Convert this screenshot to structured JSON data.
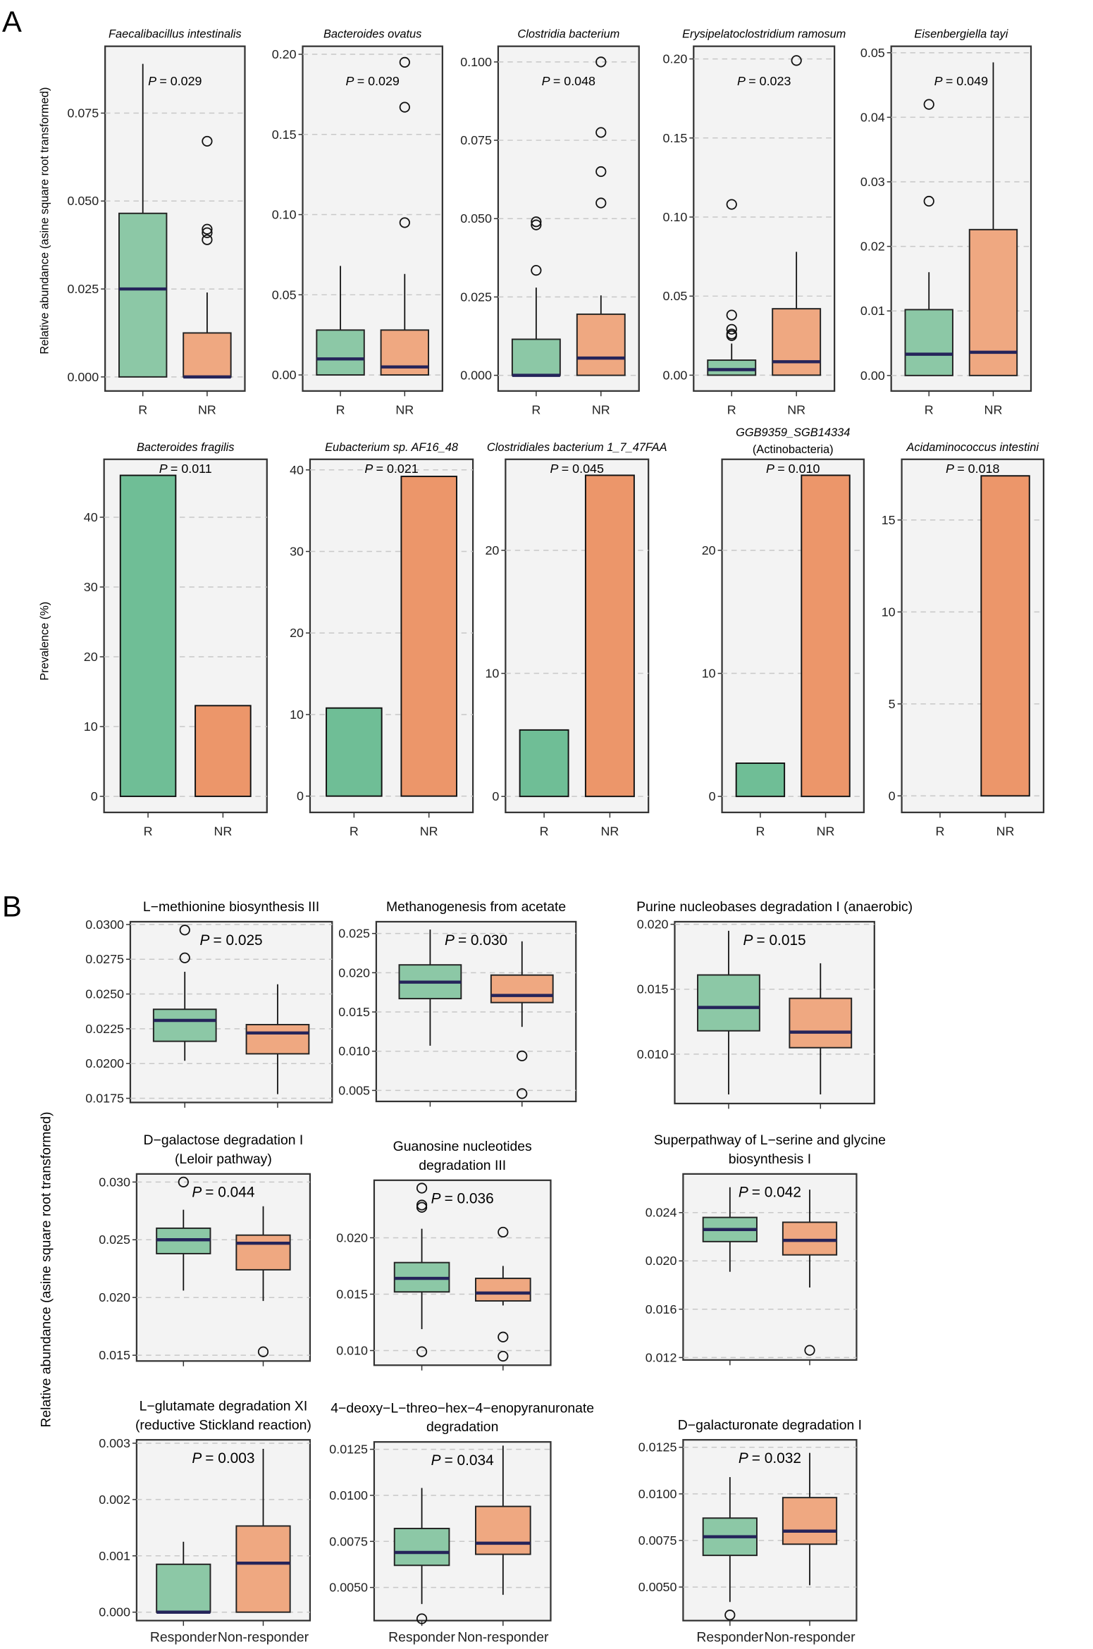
{
  "panel_labels": {
    "a": "A",
    "b": "B"
  },
  "y_labels": {
    "a_box": "Relative abundance (asine square root transformed)",
    "a_bar": "Prevalence (%)",
    "b": "Relative abundance (asine square root transformed)"
  },
  "colors": {
    "responder": "#8cc8a6",
    "non_responder": "#efa881",
    "bar_responder": "#6fbe96",
    "bar_non_responder": "#ec966a",
    "median": "#25245a",
    "panel_bg": "#f3f3f3"
  },
  "chart_data": [
    {
      "type": "box",
      "section": "A",
      "row": 1,
      "title": "Faecalibacillus intestinalis",
      "p": "P = 0.029",
      "categories": [
        "R",
        "NR"
      ],
      "ylim": [
        -0.004,
        0.094
      ],
      "yticks": [
        0,
        0.025,
        0.05,
        0.075
      ],
      "ytick_labels": [
        "0.000",
        "0.025",
        "0.050",
        "0.075"
      ],
      "boxes": [
        {
          "q1": 0,
          "median": 0.025,
          "q3": 0.0465,
          "lo": 0,
          "hi": 0.089,
          "outliers": []
        },
        {
          "q1": 0,
          "median": 0,
          "q3": 0.0125,
          "lo": 0,
          "hi": 0.024,
          "outliers": [
            0.067,
            0.042,
            0.041,
            0.039
          ]
        }
      ]
    },
    {
      "type": "box",
      "section": "A",
      "row": 1,
      "title": "Bacteroides ovatus",
      "p": "P = 0.029",
      "categories": [
        "R",
        "NR"
      ],
      "ylim": [
        -0.01,
        0.205
      ],
      "yticks": [
        0,
        0.05,
        0.1,
        0.15,
        0.2
      ],
      "ytick_labels": [
        "0.00",
        "0.05",
        "0.10",
        "0.15",
        "0.20"
      ],
      "boxes": [
        {
          "q1": 0,
          "median": 0.01,
          "q3": 0.028,
          "lo": 0,
          "hi": 0.068,
          "outliers": []
        },
        {
          "q1": 0,
          "median": 0.005,
          "q3": 0.028,
          "lo": 0,
          "hi": 0.063,
          "outliers": [
            0.195,
            0.167,
            0.095
          ]
        }
      ]
    },
    {
      "type": "box",
      "section": "A",
      "row": 1,
      "title": "Clostridia bacterium",
      "p": "P = 0.048",
      "categories": [
        "R",
        "NR"
      ],
      "ylim": [
        -0.005,
        0.105
      ],
      "yticks": [
        0,
        0.025,
        0.05,
        0.075,
        0.1
      ],
      "ytick_labels": [
        "0.000",
        "0.025",
        "0.050",
        "0.075",
        "0.100"
      ],
      "boxes": [
        {
          "q1": 0,
          "median": 0,
          "q3": 0.0115,
          "lo": 0,
          "hi": 0.028,
          "outliers": [
            0.049,
            0.048,
            0.0335
          ]
        },
        {
          "q1": 0,
          "median": 0.0055,
          "q3": 0.0195,
          "lo": 0,
          "hi": 0.0255,
          "outliers": [
            0.1,
            0.0775,
            0.065,
            0.055
          ]
        }
      ]
    },
    {
      "type": "box",
      "section": "A",
      "row": 1,
      "title": "Erysipelatoclostridium ramosum",
      "p": "P = 0.023",
      "categories": [
        "R",
        "NR"
      ],
      "ylim": [
        -0.01,
        0.208
      ],
      "yticks": [
        0,
        0.05,
        0.1,
        0.15,
        0.2
      ],
      "ytick_labels": [
        "0.00",
        "0.05",
        "0.10",
        "0.15",
        "0.20"
      ],
      "boxes": [
        {
          "q1": 0,
          "median": 0.0035,
          "q3": 0.0095,
          "lo": 0,
          "hi": 0.02,
          "outliers": [
            0.108,
            0.038,
            0.029,
            0.026,
            0.025
          ]
        },
        {
          "q1": 0,
          "median": 0.0085,
          "q3": 0.042,
          "lo": 0,
          "hi": 0.078,
          "outliers": [
            0.199
          ]
        }
      ]
    },
    {
      "type": "box",
      "section": "A",
      "row": 1,
      "title": "Eisenbergiella tayi",
      "p": "P = 0.049",
      "categories": [
        "R",
        "NR"
      ],
      "ylim": [
        -0.0024,
        0.051
      ],
      "yticks": [
        0,
        0.01,
        0.02,
        0.03,
        0.04,
        0.05
      ],
      "ytick_labels": [
        "0.00",
        "0.01",
        "0.02",
        "0.03",
        "0.04",
        "0.05"
      ],
      "boxes": [
        {
          "q1": 0,
          "median": 0.0033,
          "q3": 0.0102,
          "lo": 0,
          "hi": 0.016,
          "outliers": [
            0.042,
            0.027
          ]
        },
        {
          "q1": 0,
          "median": 0.0036,
          "q3": 0.0226,
          "lo": 0,
          "hi": 0.0485,
          "outliers": []
        }
      ]
    },
    {
      "type": "bar",
      "section": "A",
      "row": 2,
      "title": "Bacteroides fragilis",
      "p": "P = 0.011",
      "categories": [
        "R",
        "NR"
      ],
      "values": [
        46,
        13
      ],
      "ylim": [
        -2.3,
        48.3
      ],
      "yticks": [
        0,
        10,
        20,
        30,
        40
      ],
      "ytick_labels": [
        "0",
        "10",
        "20",
        "30",
        "40"
      ]
    },
    {
      "type": "bar",
      "section": "A",
      "row": 2,
      "title": "Eubacterium sp. AF16_48",
      "p": "P = 0.021",
      "categories": [
        "R",
        "NR"
      ],
      "values": [
        10.8,
        39.2
      ],
      "ylim": [
        -2.0,
        41.3
      ],
      "yticks": [
        0,
        10,
        20,
        30,
        40
      ],
      "ytick_labels": [
        "0",
        "10",
        "20",
        "30",
        "40"
      ]
    },
    {
      "type": "bar",
      "section": "A",
      "row": 2,
      "title": "Clostridiales bacterium 1_7_47FAA",
      "p": "P = 0.045",
      "categories": [
        "R",
        "NR"
      ],
      "values": [
        5.4,
        26.1
      ],
      "ylim": [
        -1.3,
        27.4
      ],
      "yticks": [
        0,
        10,
        20
      ],
      "ytick_labels": [
        "0",
        "10",
        "20"
      ]
    },
    {
      "type": "bar",
      "section": "A",
      "row": 2,
      "title": "GGB9359_SGB14334",
      "subtitle": "(Actinobacteria)",
      "p": "P = 0.010",
      "categories": [
        "R",
        "NR"
      ],
      "values": [
        2.7,
        26.1
      ],
      "ylim": [
        -1.3,
        27.4
      ],
      "yticks": [
        0,
        10,
        20
      ],
      "ytick_labels": [
        "0",
        "10",
        "20"
      ]
    },
    {
      "type": "bar",
      "section": "A",
      "row": 2,
      "title": "Acidaminococcus intestini",
      "p": "P = 0.018",
      "categories": [
        "R",
        "NR"
      ],
      "values": [
        0,
        17.4
      ],
      "ylim": [
        -0.9,
        18.3
      ],
      "yticks": [
        0,
        5,
        10,
        15
      ],
      "ytick_labels": [
        "0",
        "5",
        "10",
        "15"
      ]
    },
    {
      "type": "box",
      "section": "B",
      "row": 1,
      "title": "L−methionine biosynthesis III",
      "p": "P = 0.025",
      "categories": [
        "Responder",
        "Non-responder"
      ],
      "ylim": [
        0.0172,
        0.0302
      ],
      "yticks": [
        0.0175,
        0.02,
        0.0225,
        0.025,
        0.0275,
        0.03
      ],
      "ytick_labels": [
        "0.0175",
        "0.0200",
        "0.0225",
        "0.0250",
        "0.0275",
        "0.0300"
      ],
      "boxes": [
        {
          "q1": 0.0216,
          "median": 0.0231,
          "q3": 0.0239,
          "lo": 0.0202,
          "hi": 0.0266,
          "outliers": [
            0.0296,
            0.0276
          ]
        },
        {
          "q1": 0.0207,
          "median": 0.0222,
          "q3": 0.0228,
          "lo": 0.0178,
          "hi": 0.0257,
          "outliers": []
        }
      ]
    },
    {
      "type": "box",
      "section": "B",
      "row": 1,
      "title": "Methanogenesis from acetate",
      "p": "P = 0.030",
      "categories": [
        "Responder",
        "Non-responder"
      ],
      "ylim": [
        0.0036,
        0.0265
      ],
      "yticks": [
        0.005,
        0.01,
        0.015,
        0.02,
        0.025
      ],
      "ytick_labels": [
        "0.005",
        "0.010",
        "0.015",
        "0.020",
        "0.025"
      ],
      "boxes": [
        {
          "q1": 0.0167,
          "median": 0.0188,
          "q3": 0.021,
          "lo": 0.0107,
          "hi": 0.0255,
          "outliers": []
        },
        {
          "q1": 0.0162,
          "median": 0.0171,
          "q3": 0.0197,
          "lo": 0.0131,
          "hi": 0.024,
          "outliers": [
            0.0094,
            0.0046
          ]
        }
      ]
    },
    {
      "type": "box",
      "section": "B",
      "row": 1,
      "title": "Purine nucleobases degradation I (anaerobic)",
      "p": "P = 0.015",
      "categories": [
        "Responder",
        "Non-responder"
      ],
      "ylim": [
        0.0062,
        0.0202
      ],
      "yticks": [
        0.01,
        0.015,
        0.02
      ],
      "ytick_labels": [
        "0.010",
        "0.015",
        "0.020"
      ],
      "boxes": [
        {
          "q1": 0.0118,
          "median": 0.0136,
          "q3": 0.0161,
          "lo": 0.0069,
          "hi": 0.0195,
          "outliers": []
        },
        {
          "q1": 0.0105,
          "median": 0.0117,
          "q3": 0.0143,
          "lo": 0.0069,
          "hi": 0.017,
          "outliers": []
        }
      ]
    },
    {
      "type": "box",
      "section": "B",
      "row": 2,
      "title": "D−galactose degradation I",
      "subtitle": "(Leloir pathway)",
      "p": "P = 0.044",
      "categories": [
        "Responder",
        "Non-responder"
      ],
      "ylim": [
        0.0145,
        0.0307
      ],
      "yticks": [
        0.015,
        0.02,
        0.025,
        0.03
      ],
      "ytick_labels": [
        "0.015",
        "0.020",
        "0.025",
        "0.030"
      ],
      "boxes": [
        {
          "q1": 0.0238,
          "median": 0.025,
          "q3": 0.026,
          "lo": 0.0206,
          "hi": 0.0276,
          "outliers": [
            0.03
          ]
        },
        {
          "q1": 0.0224,
          "median": 0.0247,
          "q3": 0.0254,
          "lo": 0.0197,
          "hi": 0.0279,
          "outliers": [
            0.0153
          ]
        }
      ]
    },
    {
      "type": "box",
      "section": "B",
      "row": 2,
      "title": "Guanosine nucleotides",
      "subtitle": "degradation III",
      "p": "P = 0.036",
      "categories": [
        "Responder",
        "Non-responder"
      ],
      "ylim": [
        0.0087,
        0.0251
      ],
      "yticks": [
        0.01,
        0.015,
        0.02
      ],
      "ytick_labels": [
        "0.010",
        "0.015",
        "0.020"
      ],
      "boxes": [
        {
          "q1": 0.0152,
          "median": 0.0164,
          "q3": 0.0178,
          "lo": 0.0119,
          "hi": 0.0208,
          "outliers": [
            0.0244,
            0.0229,
            0.0227,
            0.0099
          ]
        },
        {
          "q1": 0.0144,
          "median": 0.0151,
          "q3": 0.0164,
          "lo": 0.014,
          "hi": 0.0175,
          "outliers": [
            0.0205,
            0.0112,
            0.0095
          ]
        }
      ]
    },
    {
      "type": "box",
      "section": "B",
      "row": 2,
      "title": "Superpathway of L−serine and glycine",
      "subtitle": "biosynthesis I",
      "p": "P = 0.042",
      "categories": [
        "Responder",
        "Non-responder"
      ],
      "ylim": [
        0.0118,
        0.0272
      ],
      "yticks": [
        0.012,
        0.016,
        0.02,
        0.024
      ],
      "ytick_labels": [
        "0.012",
        "0.016",
        "0.020",
        "0.024"
      ],
      "boxes": [
        {
          "q1": 0.0216,
          "median": 0.0226,
          "q3": 0.0236,
          "lo": 0.0191,
          "hi": 0.0261,
          "outliers": []
        },
        {
          "q1": 0.0205,
          "median": 0.0217,
          "q3": 0.0232,
          "lo": 0.0178,
          "hi": 0.0259,
          "outliers": [
            0.0126
          ]
        }
      ]
    },
    {
      "type": "box",
      "section": "B",
      "row": 3,
      "title": "L−glutamate degradation XI",
      "subtitle": "(reductive Stickland reaction)",
      "p": "P = 0.003",
      "categories": [
        "Responder",
        "Non-responder"
      ],
      "ylim": [
        -0.00015,
        0.00306
      ],
      "yticks": [
        0,
        0.001,
        0.002,
        0.003
      ],
      "ytick_labels": [
        "0.000",
        "0.001",
        "0.002",
        "0.003"
      ],
      "boxes": [
        {
          "q1": 0,
          "median": 0,
          "q3": 0.00085,
          "lo": 0,
          "hi": 0.00125,
          "outliers": []
        },
        {
          "q1": 0,
          "median": 0.00087,
          "q3": 0.00153,
          "lo": 0,
          "hi": 0.0029,
          "outliers": []
        }
      ]
    },
    {
      "type": "box",
      "section": "B",
      "row": 3,
      "title": "4−deoxy−L−threo−hex−4−enopyranuronate",
      "subtitle": "degradation",
      "p": "P = 0.034",
      "categories": [
        "Responder",
        "Non-responder"
      ],
      "ylim": [
        0.0032,
        0.0129
      ],
      "yticks": [
        0.005,
        0.0075,
        0.01,
        0.0125
      ],
      "ytick_labels": [
        "0.0050",
        "0.0075",
        "0.0100",
        "0.0125"
      ],
      "boxes": [
        {
          "q1": 0.0062,
          "median": 0.0069,
          "q3": 0.0082,
          "lo": 0.0041,
          "hi": 0.0104,
          "outliers": [
            0.0033
          ]
        },
        {
          "q1": 0.0068,
          "median": 0.0074,
          "q3": 0.0094,
          "lo": 0.0046,
          "hi": 0.0127,
          "outliers": []
        }
      ]
    },
    {
      "type": "box",
      "section": "B",
      "row": 3,
      "title": "D−galacturonate degradation I",
      "p": "P = 0.032",
      "categories": [
        "Responder",
        "Non-responder"
      ],
      "ylim": [
        0.0032,
        0.0129
      ],
      "yticks": [
        0.005,
        0.0075,
        0.01,
        0.0125
      ],
      "ytick_labels": [
        "0.0050",
        "0.0075",
        "0.0100",
        "0.0125"
      ],
      "boxes": [
        {
          "q1": 0.0067,
          "median": 0.0077,
          "q3": 0.0087,
          "lo": 0.0042,
          "hi": 0.0109,
          "outliers": [
            0.0035
          ]
        },
        {
          "q1": 0.0073,
          "median": 0.008,
          "q3": 0.0098,
          "lo": 0.0051,
          "hi": 0.0122,
          "outliers": []
        }
      ]
    }
  ]
}
